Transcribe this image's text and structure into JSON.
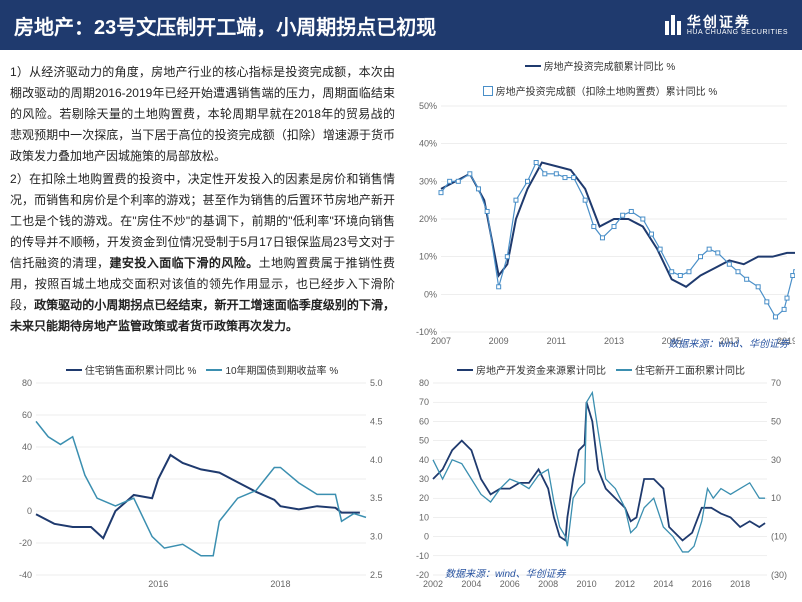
{
  "header": {
    "title": "房地产：23号文压制开工端，小周期拐点已初现",
    "logo_cn": "华创证券",
    "logo_en": "HUA CHUANG SECURITIES"
  },
  "paragraphs": {
    "p1": "1）从经济驱动力的角度，房地产行业的核心指标是投资完成额，本次由棚改驱动的周期2016-2019年已经开始遭遇销售端的压力，周期面临结束的风险。若剔除天量的土地购置费，本轮周期早就在2018年的贸易战的悲观预期中一次探底，当下居于高位的投资完成额（扣除）增速源于货币政策发力叠加地产因城施策的局部放松。",
    "p2a": "2）在扣除土地购置费的投资中，决定性开发投入的因素是房价和销售情况，而销售和房价是个利率的游戏；甚至作为销售的后置环节房地产新开工也是个钱的游戏。在\"房住不炒\"的基调下，前期的\"低利率\"环境向销售的传导并不顺畅，开发资金到位情况受制于5月17日银保监局23号文对于信托融资的清理，",
    "p2b": "建安投入面临下滑的风险。",
    "p2c": "土地购置费属于推销性费用，按照百城土地成交面积对该值的领先作用显示，也已经步入下滑阶段，",
    "p2d": "政策驱动的小周期拐点已经结束，新开工增速面临季度级别的下滑，未来只能期待房地产监管政策或者货币政策再次发力。"
  },
  "source_label": "数据来源：wind、华创证券",
  "chart_top": {
    "type": "line",
    "legend": [
      {
        "label": "房地产投资完成额累计同比 %",
        "color": "#1f3a6e"
      },
      {
        "label": "房地产投资完成额（扣除土地购置费）累计同比 %",
        "color": "#4a8fc8",
        "marker": "square"
      }
    ],
    "ylim": [
      -10,
      50
    ],
    "ytick_step": 10,
    "xlim": [
      2007,
      2019
    ],
    "xtick_step": 2,
    "grid_color": "#dddddd",
    "series": [
      {
        "color": "#1f3a6e",
        "width": 2,
        "points": [
          [
            2007,
            28
          ],
          [
            2007.5,
            30
          ],
          [
            2008,
            32
          ],
          [
            2008.5,
            25
          ],
          [
            2009,
            5
          ],
          [
            2009.3,
            8
          ],
          [
            2009.6,
            20
          ],
          [
            2010,
            28
          ],
          [
            2010.5,
            35
          ],
          [
            2011,
            34
          ],
          [
            2011.5,
            33
          ],
          [
            2012,
            28
          ],
          [
            2012.5,
            18
          ],
          [
            2013,
            20
          ],
          [
            2013.5,
            20
          ],
          [
            2014,
            18
          ],
          [
            2014.5,
            12
          ],
          [
            2015,
            4
          ],
          [
            2015.5,
            2
          ],
          [
            2016,
            5
          ],
          [
            2016.5,
            7
          ],
          [
            2017,
            9
          ],
          [
            2017.5,
            8
          ],
          [
            2018,
            10
          ],
          [
            2018.5,
            10
          ],
          [
            2019,
            11
          ],
          [
            2019.3,
            11
          ]
        ]
      },
      {
        "color": "#4a8fc8",
        "width": 1.2,
        "marker": "square",
        "points": [
          [
            2007,
            27
          ],
          [
            2007.3,
            30
          ],
          [
            2007.6,
            30
          ],
          [
            2008,
            32
          ],
          [
            2008.3,
            28
          ],
          [
            2008.6,
            22
          ],
          [
            2009,
            2
          ],
          [
            2009.3,
            10
          ],
          [
            2009.6,
            25
          ],
          [
            2010,
            30
          ],
          [
            2010.3,
            35
          ],
          [
            2010.6,
            32
          ],
          [
            2011,
            32
          ],
          [
            2011.3,
            31
          ],
          [
            2011.6,
            31
          ],
          [
            2012,
            25
          ],
          [
            2012.3,
            18
          ],
          [
            2012.6,
            15
          ],
          [
            2013,
            18
          ],
          [
            2013.3,
            21
          ],
          [
            2013.6,
            22
          ],
          [
            2014,
            20
          ],
          [
            2014.3,
            16
          ],
          [
            2014.6,
            12
          ],
          [
            2015,
            6
          ],
          [
            2015.3,
            5
          ],
          [
            2015.6,
            6
          ],
          [
            2016,
            10
          ],
          [
            2016.3,
            12
          ],
          [
            2016.6,
            11
          ],
          [
            2017,
            8
          ],
          [
            2017.3,
            6
          ],
          [
            2017.6,
            4
          ],
          [
            2018,
            2
          ],
          [
            2018.3,
            -2
          ],
          [
            2018.6,
            -6
          ],
          [
            2018.9,
            -4
          ],
          [
            2019,
            -1
          ],
          [
            2019.2,
            5
          ],
          [
            2019.3,
            6
          ]
        ]
      }
    ]
  },
  "chart_bl": {
    "type": "line-dual",
    "legend": [
      {
        "label": "住宅销售面积累计同比 %",
        "color": "#1f3a6e"
      },
      {
        "label": "10年期国债到期收益率 %",
        "color": "#3b8fb0"
      }
    ],
    "yleft": {
      "lim": [
        -40,
        80
      ],
      "step": 20
    },
    "yright": {
      "lim": [
        2.5,
        5.0
      ],
      "step": 0.5
    },
    "xlim": [
      2014,
      2019.4
    ],
    "xticks": [
      2016,
      2018
    ],
    "series_left": {
      "color": "#1f3a6e",
      "width": 2,
      "points": [
        [
          2014,
          -2
        ],
        [
          2014.3,
          -8
        ],
        [
          2014.6,
          -10
        ],
        [
          2014.9,
          -10
        ],
        [
          2015.1,
          -17
        ],
        [
          2015.3,
          0
        ],
        [
          2015.6,
          10
        ],
        [
          2015.9,
          8
        ],
        [
          2016,
          20
        ],
        [
          2016.2,
          35
        ],
        [
          2016.4,
          30
        ],
        [
          2016.7,
          26
        ],
        [
          2017,
          24
        ],
        [
          2017.3,
          18
        ],
        [
          2017.6,
          12
        ],
        [
          2017.9,
          7
        ],
        [
          2018,
          3
        ],
        [
          2018.3,
          1
        ],
        [
          2018.6,
          3
        ],
        [
          2018.9,
          2
        ],
        [
          2019,
          -1
        ],
        [
          2019.3,
          -1
        ]
      ]
    },
    "series_right": {
      "color": "#3b8fb0",
      "width": 1.5,
      "points": [
        [
          2014,
          4.5
        ],
        [
          2014.2,
          4.3
        ],
        [
          2014.4,
          4.2
        ],
        [
          2014.6,
          4.3
        ],
        [
          2014.8,
          3.8
        ],
        [
          2015,
          3.5
        ],
        [
          2015.3,
          3.4
        ],
        [
          2015.6,
          3.5
        ],
        [
          2015.9,
          3.0
        ],
        [
          2016.1,
          2.85
        ],
        [
          2016.4,
          2.9
        ],
        [
          2016.7,
          2.75
        ],
        [
          2016.9,
          2.75
        ],
        [
          2017,
          3.2
        ],
        [
          2017.3,
          3.5
        ],
        [
          2017.6,
          3.6
        ],
        [
          2017.9,
          3.9
        ],
        [
          2018,
          3.9
        ],
        [
          2018.3,
          3.7
        ],
        [
          2018.6,
          3.55
        ],
        [
          2018.9,
          3.55
        ],
        [
          2019,
          3.2
        ],
        [
          2019.2,
          3.3
        ],
        [
          2019.4,
          3.25
        ]
      ]
    }
  },
  "chart_br": {
    "type": "line-dual",
    "legend": [
      {
        "label": "房地产开发资金来源累计同比",
        "color": "#1f3a6e"
      },
      {
        "label": "住宅新开工面积累计同比",
        "color": "#3b8fb0"
      }
    ],
    "yleft": {
      "lim": [
        -20,
        80
      ],
      "step": 10
    },
    "yright": {
      "lim": [
        -30,
        70
      ],
      "step": 20,
      "color": "#c04030"
    },
    "xlim": [
      2002,
      2019.4
    ],
    "xtick_step": 2,
    "series_left": {
      "color": "#1f3a6e",
      "width": 1.8,
      "points": [
        [
          2002,
          30
        ],
        [
          2002.5,
          35
        ],
        [
          2003,
          45
        ],
        [
          2003.5,
          50
        ],
        [
          2004,
          45
        ],
        [
          2004.5,
          30
        ],
        [
          2005,
          22
        ],
        [
          2005.5,
          25
        ],
        [
          2006,
          25
        ],
        [
          2006.5,
          28
        ],
        [
          2007,
          28
        ],
        [
          2007.5,
          35
        ],
        [
          2008,
          25
        ],
        [
          2008.3,
          10
        ],
        [
          2008.6,
          0
        ],
        [
          2008.9,
          -2
        ],
        [
          2009,
          10
        ],
        [
          2009.3,
          30
        ],
        [
          2009.6,
          45
        ],
        [
          2009.9,
          48
        ],
        [
          2010,
          70
        ],
        [
          2010.3,
          60
        ],
        [
          2010.6,
          35
        ],
        [
          2011,
          25
        ],
        [
          2011.5,
          20
        ],
        [
          2012,
          15
        ],
        [
          2012.3,
          8
        ],
        [
          2012.6,
          10
        ],
        [
          2013,
          30
        ],
        [
          2013.5,
          30
        ],
        [
          2014,
          25
        ],
        [
          2014.3,
          5
        ],
        [
          2014.6,
          2
        ],
        [
          2015,
          -2
        ],
        [
          2015.5,
          2
        ],
        [
          2016,
          15
        ],
        [
          2016.5,
          15
        ],
        [
          2017,
          12
        ],
        [
          2017.5,
          10
        ],
        [
          2018,
          5
        ],
        [
          2018.5,
          8
        ],
        [
          2019,
          5
        ],
        [
          2019.3,
          7
        ]
      ]
    },
    "series_right": {
      "color": "#3b8fb0",
      "width": 1.3,
      "points": [
        [
          2002,
          30
        ],
        [
          2002.5,
          20
        ],
        [
          2003,
          30
        ],
        [
          2003.5,
          28
        ],
        [
          2004,
          20
        ],
        [
          2004.5,
          12
        ],
        [
          2005,
          8
        ],
        [
          2005.5,
          15
        ],
        [
          2006,
          20
        ],
        [
          2006.5,
          18
        ],
        [
          2007,
          15
        ],
        [
          2007.5,
          22
        ],
        [
          2008,
          25
        ],
        [
          2008.3,
          8
        ],
        [
          2008.6,
          -5
        ],
        [
          2008.9,
          -10
        ],
        [
          2009,
          -15
        ],
        [
          2009.3,
          10
        ],
        [
          2009.6,
          15
        ],
        [
          2009.9,
          18
        ],
        [
          2010,
          60
        ],
        [
          2010.3,
          65
        ],
        [
          2010.6,
          45
        ],
        [
          2011,
          20
        ],
        [
          2011.5,
          15
        ],
        [
          2012,
          5
        ],
        [
          2012.3,
          -8
        ],
        [
          2012.6,
          -5
        ],
        [
          2013,
          5
        ],
        [
          2013.5,
          10
        ],
        [
          2014,
          -5
        ],
        [
          2014.5,
          -10
        ],
        [
          2015,
          -18
        ],
        [
          2015.3,
          -18
        ],
        [
          2015.6,
          -15
        ],
        [
          2016,
          -2
        ],
        [
          2016.3,
          15
        ],
        [
          2016.6,
          10
        ],
        [
          2017,
          15
        ],
        [
          2017.5,
          12
        ],
        [
          2018,
          15
        ],
        [
          2018.5,
          18
        ],
        [
          2019,
          10
        ],
        [
          2019.3,
          10
        ]
      ]
    }
  }
}
